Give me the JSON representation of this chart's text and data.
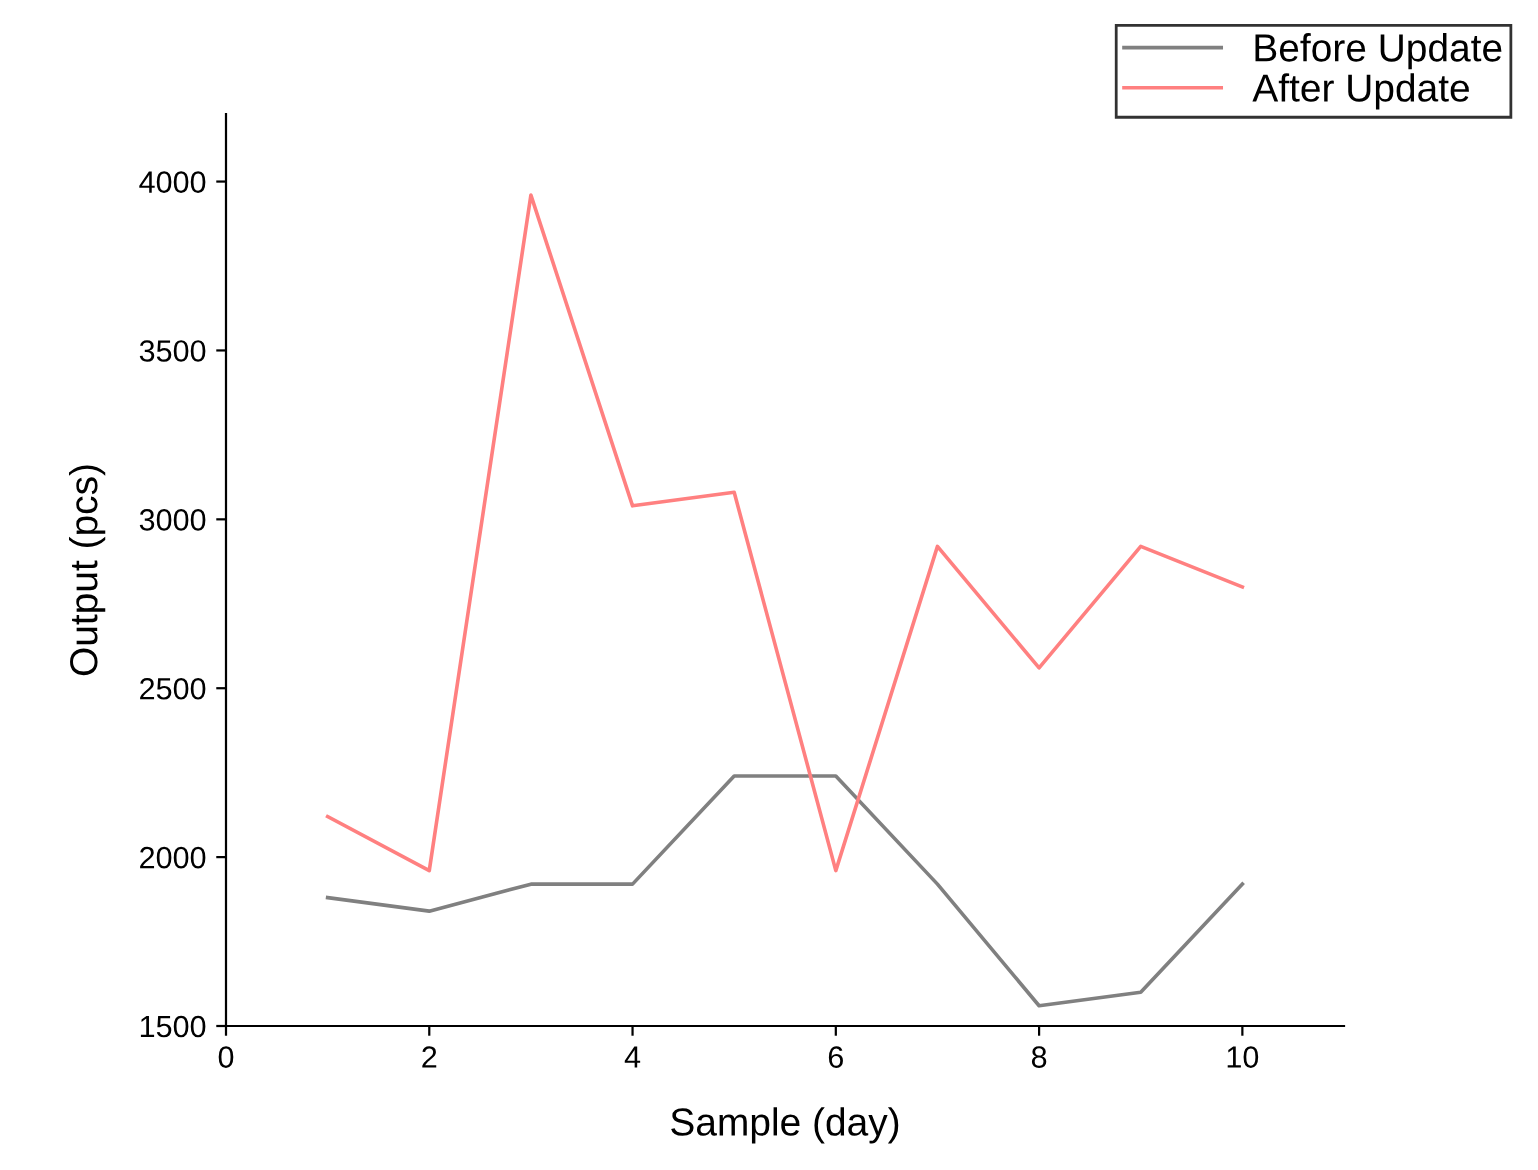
{
  "chart_data": {
    "type": "line",
    "xlabel": "Sample (day)",
    "ylabel": "Output (pcs)",
    "x": [
      1,
      2,
      3,
      4,
      5,
      6,
      7,
      8,
      9,
      10
    ],
    "series": [
      {
        "name": "Before Update",
        "color": "#808080",
        "values": [
          1880,
          1840,
          1920,
          1920,
          2240,
          2240,
          1920,
          1560,
          1600,
          1920
        ]
      },
      {
        "name": "After Update",
        "color": "#ff8080",
        "values": [
          2120,
          1960,
          3960,
          3040,
          3080,
          1960,
          2920,
          2560,
          2920,
          2800
        ]
      }
    ],
    "xlim": [
      0,
      11
    ],
    "xticks": [
      0,
      2,
      4,
      6,
      8,
      10
    ],
    "ylim": [
      1500,
      4200
    ],
    "yticks": [
      1500,
      2000,
      2500,
      3000,
      3500,
      4000
    ],
    "grid": false,
    "legend": "top right",
    "marker": "none",
    "line_style": "solid"
  }
}
